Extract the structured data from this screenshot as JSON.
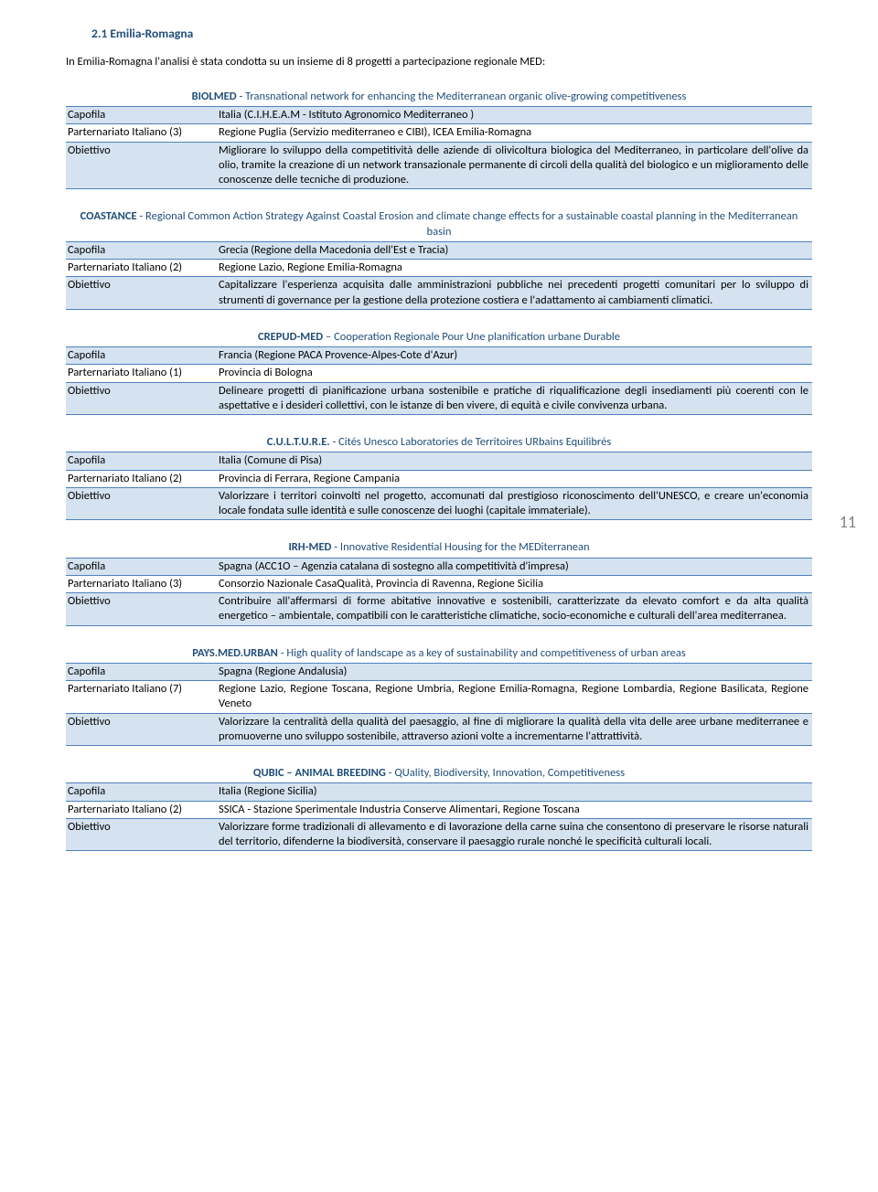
{
  "heading": "2.1 Emilia-Romagna",
  "intro": "In Emilia-Romagna l'analisi è stata condotta su un insieme di 8 progetti a partecipazione regionale MED:",
  "pageNumber": "11",
  "labels": {
    "capofila": "Capofila",
    "parternariato": "Parternariato Italiano",
    "obiettivo": "Obiettivo"
  },
  "projects": [
    {
      "acronym": "BIOLMED",
      "sep": " - ",
      "subtitle": "Transnational network for enhancing the Mediterranean organic olive-growing competitiveness",
      "parternariatoCount": "(3)",
      "capofila": "Italia (C.I.H.E.A.M  - Istituto Agronomico Mediterraneo )",
      "parternariato": "Regione Puglia (Servizio mediterraneo e CIBI), ICEA Emilia-Romagna",
      "obiettivo": "Migliorare lo sviluppo della competitività delle aziende di olivicoltura biologica del Mediterraneo, in particolare dell'olive da olio, tramite la creazione di un network transazionale permanente di circoli della qualità del biologico e un miglioramento delle conoscenze delle tecniche di produzione."
    },
    {
      "acronym": "COASTANCE",
      "sep": " - ",
      "subtitle": "Regional Common Action Strategy Against Coastal Erosion and climate change effects for a sustainable coastal planning in the Mediterranean basin",
      "parternariatoCount": "(2)",
      "capofila": "Grecia (Regione della Macedonia dell'Est e Tracia)",
      "parternariato": "Regione Lazio, Regione Emilia-Romagna",
      "obiettivo": "Capitalizzare l'esperienza acquisita dalle amministrazioni pubbliche nei precedenti progetti comunitari per lo sviluppo di strumenti di governance per la gestione della protezione costiera e l'adattamento ai cambiamenti climatici."
    },
    {
      "acronym": "CREPUD-MED",
      "sep": " – ",
      "subtitle": "Cooperation Regionale Pour Une planification urbane Durable",
      "parternariatoCount": "(1)",
      "capofila": "Francia (Regione PACA Provence-Alpes-Cote d'Azur)",
      "parternariato": "Provincia di Bologna",
      "obiettivo": "Delineare progetti di pianificazione urbana sostenibile e pratiche di riqualificazione degli insediamenti più coerenti con le aspettative e i desideri collettivi, con le istanze di ben vivere, di equità e civile convivenza urbana."
    },
    {
      "acronym": "C.U.L.T.U.R.E.",
      "sep": " - ",
      "subtitle": "Cités Unesco Laboratories de Territoires URbains Equilibrés",
      "parternariatoCount": "(2)",
      "capofila": "Italia (Comune di Pisa)",
      "parternariato": "Provincia di Ferrara, Regione Campania",
      "obiettivo": "Valorizzare i territori coinvolti nel progetto, accomunati dal prestigioso riconoscimento dell'UNESCO, e creare un'economia locale fondata sulle identità e sulle conoscenze dei luoghi (capitale immateriale)."
    },
    {
      "acronym": "IRH-MED",
      "sep": " - ",
      "subtitle": "Innovative Residential Housing for the MEDiterranean",
      "parternariatoCount": "(3)",
      "capofila": "Spagna (ACC1O – Agenzia catalana di sostegno alla competitività d'impresa)",
      "parternariato": "Consorzio Nazionale CasaQualità, Provincia di Ravenna, Regione Sicilia",
      "obiettivo": "Contribuire all'affermarsi di forme abitative innovative e sostenibili, caratterizzate da elevato comfort e da alta qualità energetico – ambientale, compatibili con le caratteristiche climatiche, socio-economiche e culturali dell'area mediterranea."
    },
    {
      "acronym": "PAYS.MED.URBAN",
      "sep": " - ",
      "subtitle": "High quality of landscape as a key of sustainability and competitiveness of urban areas",
      "parternariatoCount": "(7)",
      "capofila": "Spagna (Regione Andalusia)",
      "parternariato": "Regione Lazio, Regione Toscana, Regione Umbria, Regione Emilia-Romagna, Regione Lombardia, Regione Basilicata, Regione Veneto",
      "obiettivo": "Valorizzare la centralità della qualità del paesaggio, al fine di migliorare la qualità della vita delle aree urbane mediterranee e promuoverne uno sviluppo sostenibile, attraverso azioni volte a incrementarne l'attrattività."
    },
    {
      "acronym": "QUBIC – ANIMAL BREEDING",
      "sep": " - ",
      "subtitle": "QUality, Biodiversity, Innovation, Competitiveness",
      "parternariatoCount": "(2)",
      "capofila": "Italia (Regione Sicilia)",
      "parternariato": "SSICA - Stazione Sperimentale Industria Conserve Alimentari, Regione Toscana",
      "obiettivo": "Valorizzare forme tradizionali di allevamento e di lavorazione della carne suina che consentono di preservare le risorse naturali del territorio, difenderne la biodiversità, conservare il paesaggio rurale nonché le specificità culturali locali."
    }
  ]
}
